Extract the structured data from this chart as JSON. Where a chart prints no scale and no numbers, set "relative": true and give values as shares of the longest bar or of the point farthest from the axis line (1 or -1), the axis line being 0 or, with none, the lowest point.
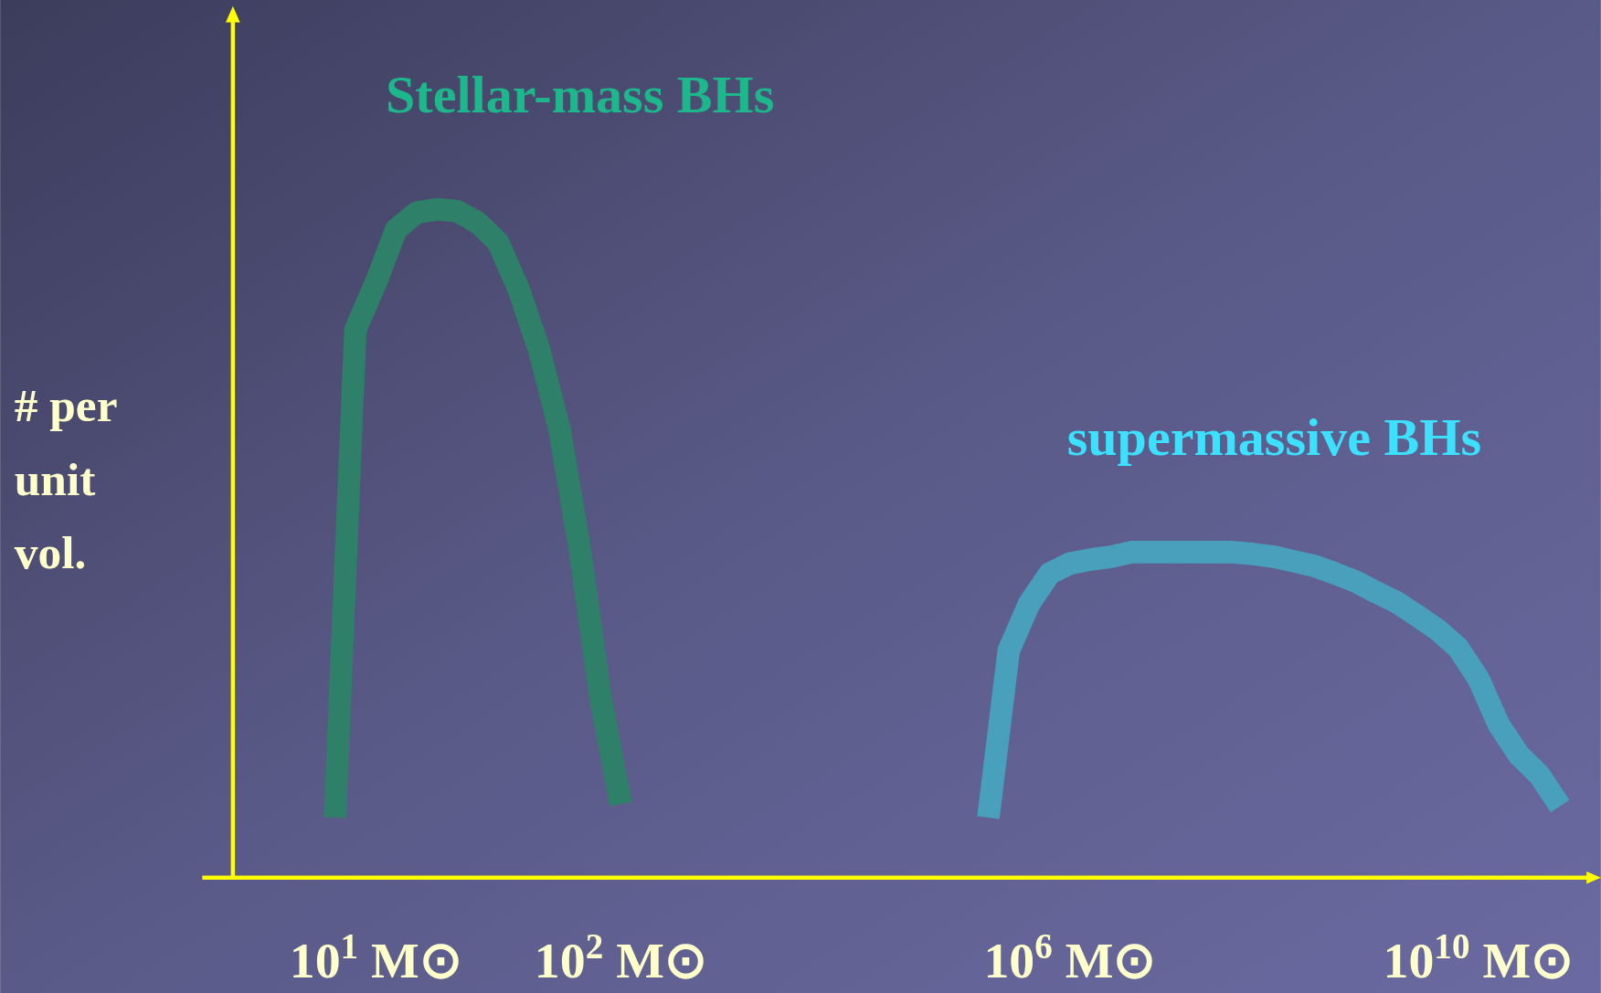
{
  "chart_data": {
    "type": "line",
    "ylabel": "# per unit vol.",
    "relative": true,
    "line_style": "solid",
    "categories": [
      null,
      null,
      null,
      null,
      null,
      null,
      null,
      "10$^{1}$ M⊙",
      null,
      null,
      null,
      null,
      null,
      null,
      null,
      null,
      null,
      null,
      null,
      "10$^{2}$ M⊙",
      null,
      null,
      null,
      null,
      null,
      null,
      null,
      null,
      null,
      null,
      null,
      null,
      null,
      null,
      null,
      null,
      null,
      null,
      null,
      null,
      null,
      "10$^{6}$ M⊙",
      null,
      null,
      null,
      null,
      null,
      null,
      null,
      null,
      null,
      null,
      null,
      null,
      null,
      null,
      null,
      null,
      null,
      null,
      null,
      "10$^{10}$ M⊙",
      null,
      null,
      null,
      null,
      null,
      null
    ],
    "series": [
      {
        "name": "Stellar-mass BHs",
        "color": "#2e8068",
        "values": [
          null,
          null,
          null,
          null,
          null,
          0.09,
          0.82,
          0.89,
          0.97,
          0.995,
          1,
          0.997,
          0.98,
          0.95,
          0.88,
          0.79,
          0.67,
          0.49,
          0.27,
          0.11,
          null,
          null,
          null,
          null,
          null,
          null,
          null,
          null,
          null,
          null,
          null,
          null,
          null,
          null,
          null,
          null,
          null,
          null,
          null,
          null,
          null,
          null,
          null,
          null,
          null,
          null,
          null,
          null,
          null,
          null,
          null,
          null,
          null,
          null,
          null,
          null,
          null,
          null,
          null,
          null,
          null,
          null,
          null,
          null,
          null,
          null,
          null,
          null
        ]
      },
      {
        "name": "supermassive BHs",
        "color": "#48a0bc",
        "values": [
          null,
          null,
          null,
          null,
          null,
          null,
          null,
          null,
          null,
          null,
          null,
          null,
          null,
          null,
          null,
          null,
          null,
          null,
          null,
          null,
          null,
          null,
          null,
          null,
          null,
          null,
          null,
          null,
          null,
          null,
          null,
          null,
          null,
          null,
          null,
          null,
          null,
          0.09,
          0.34,
          0.41,
          0.455,
          0.47,
          0.476,
          0.48,
          0.487,
          0.487,
          0.487,
          0.487,
          0.487,
          0.487,
          0.484,
          0.48,
          0.473,
          0.466,
          0.455,
          0.443,
          0.427,
          0.412,
          0.392,
          0.371,
          0.344,
          0.298,
          0.229,
          0.183,
          0.153,
          0.107,
          null,
          null
        ]
      }
    ]
  }
}
